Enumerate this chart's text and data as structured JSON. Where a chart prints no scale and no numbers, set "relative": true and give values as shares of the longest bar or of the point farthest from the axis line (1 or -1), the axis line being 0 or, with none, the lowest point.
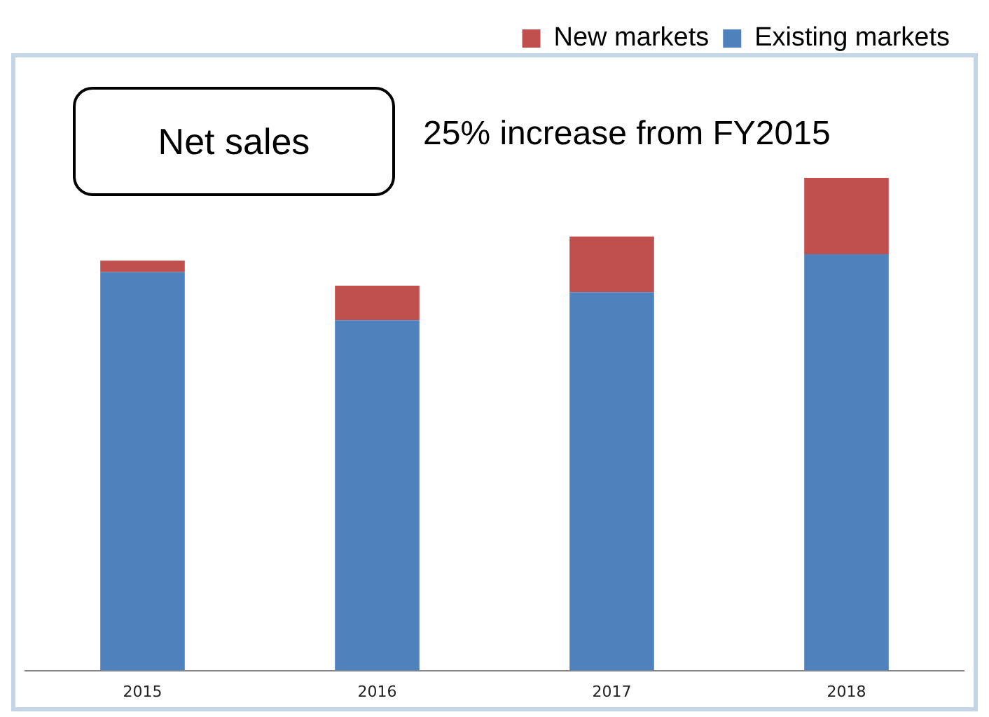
{
  "chart_data": {
    "type": "bar",
    "title": "Net sales",
    "annotations": [
      "25% increase from FY2015"
    ],
    "categories": [
      "2015",
      "2016",
      "2017",
      "2018"
    ],
    "stacked": true,
    "relative": true,
    "legend": "top right",
    "grid": false,
    "series": [
      {
        "name": "Existing markets",
        "color": "#4f81bd",
        "values": [
          0.809,
          0.711,
          0.768,
          0.845
        ]
      },
      {
        "name": "New markets",
        "color": "#c0504d",
        "values": [
          0.023,
          0.07,
          0.113,
          0.155
        ]
      }
    ]
  }
}
